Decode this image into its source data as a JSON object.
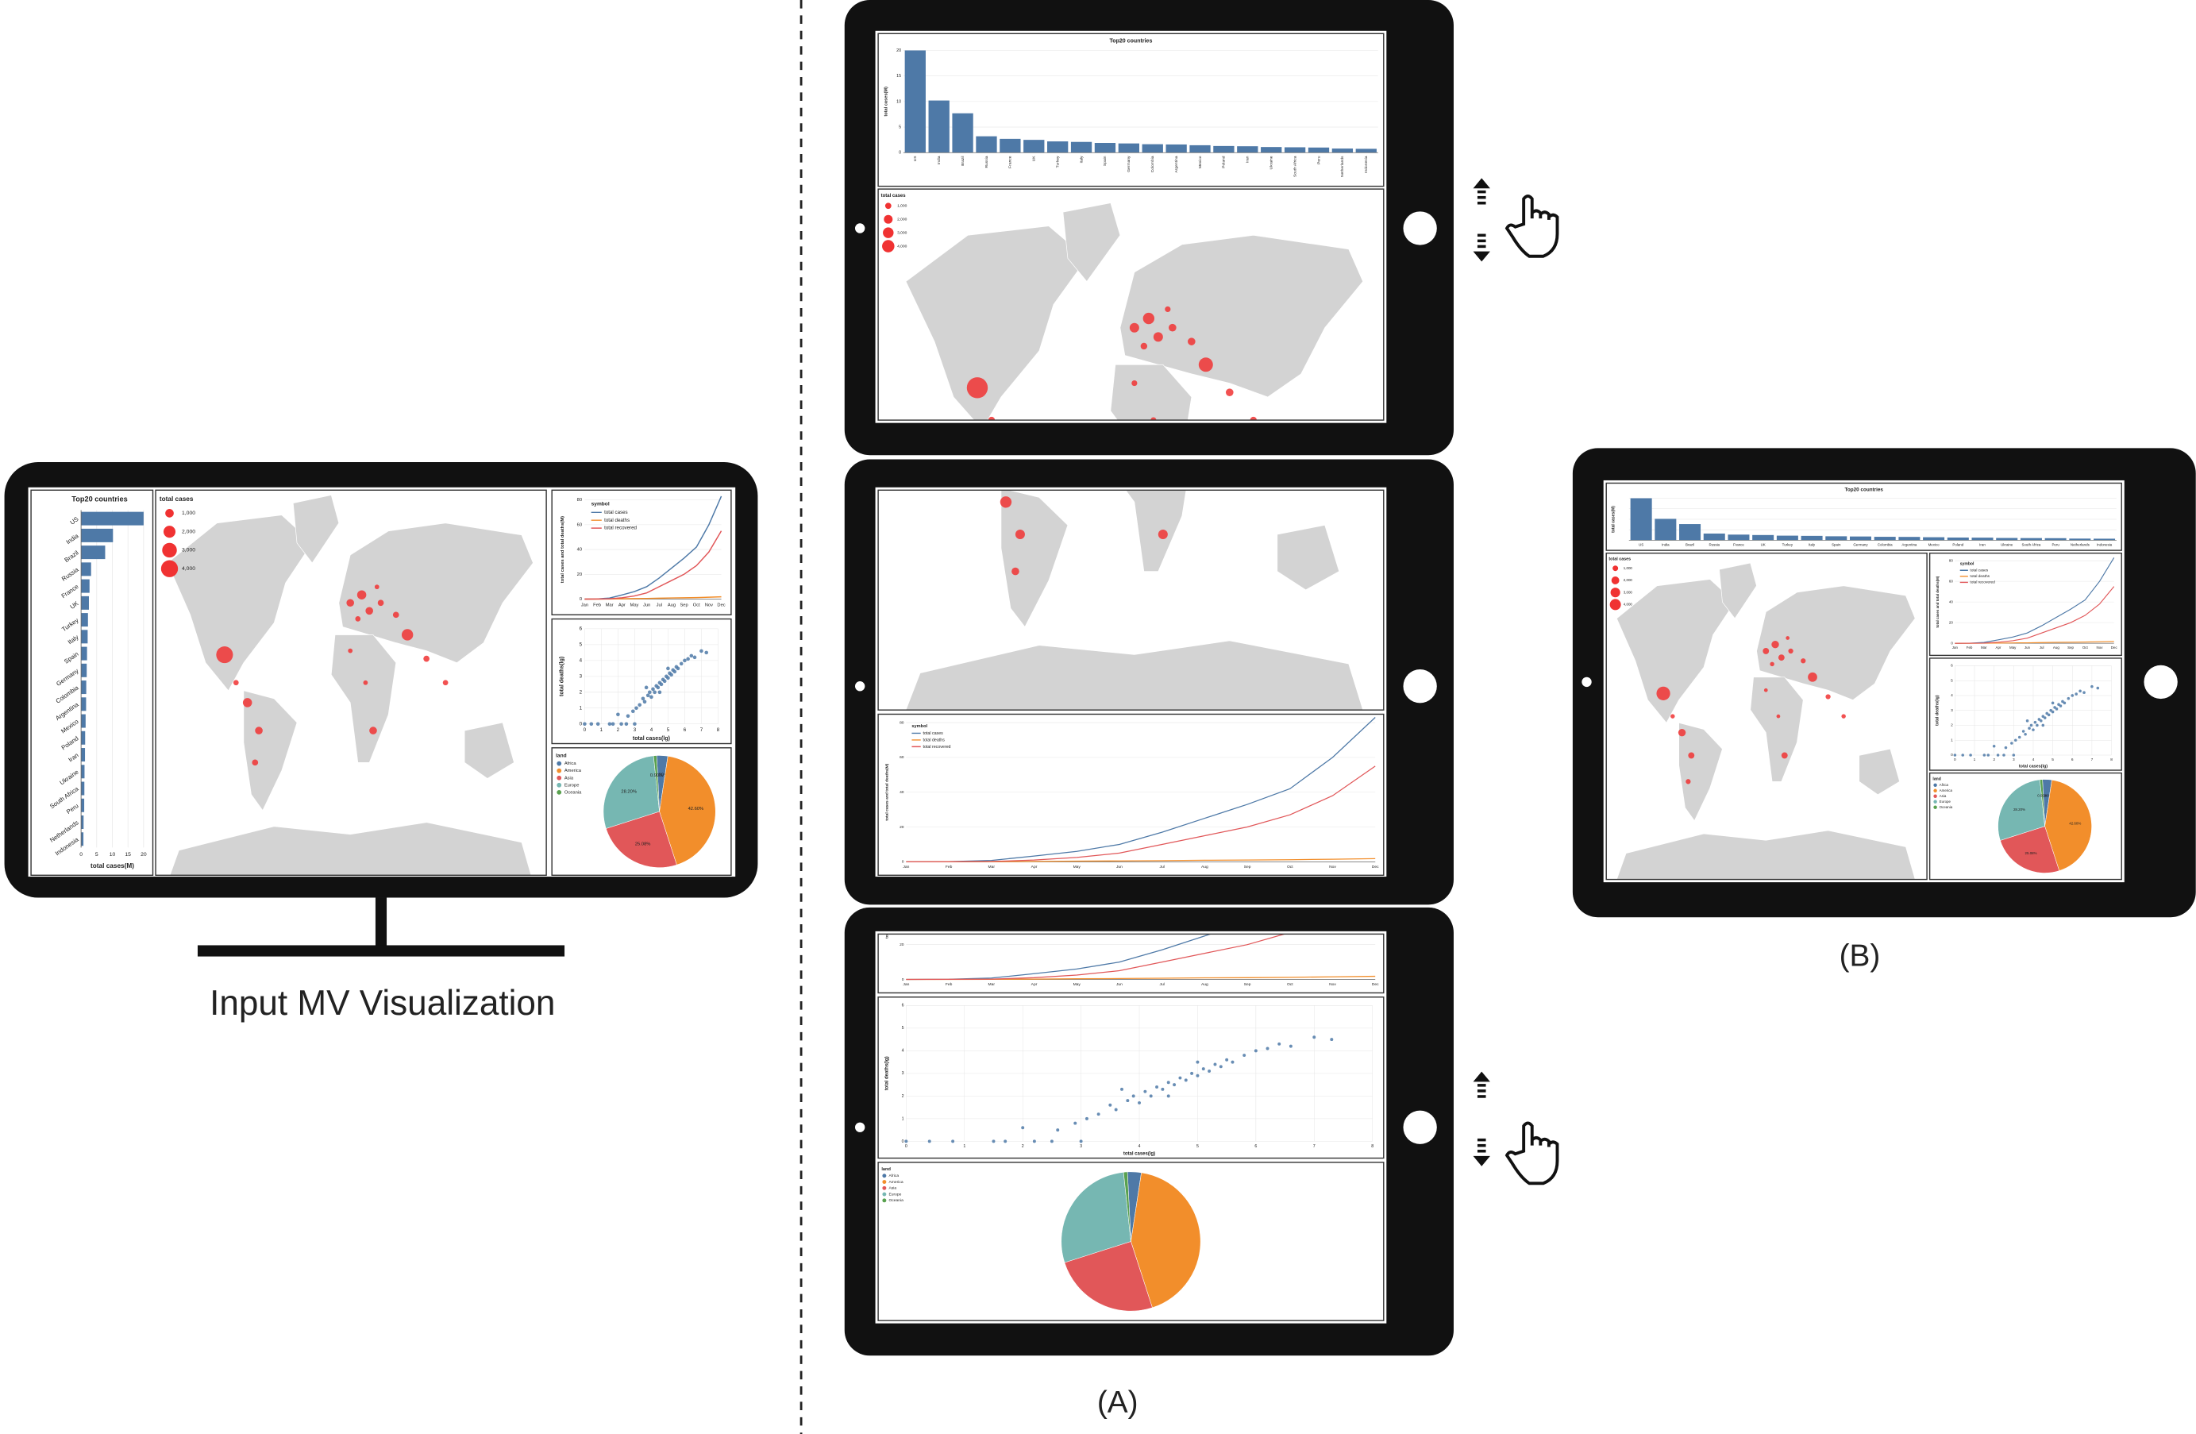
{
  "captions": {
    "desktop": "Input MV Visualization",
    "a": "(A)",
    "b": "(B)"
  },
  "chart_data": [
    {
      "type": "bar",
      "title": "Top20 countries",
      "y_label": "total cases(M)",
      "categories": [
        "US",
        "India",
        "Brazil",
        "Russia",
        "France",
        "UK",
        "Turkey",
        "Italy",
        "Spain",
        "Germany",
        "Colombia",
        "Argentina",
        "Mexico",
        "Poland",
        "Iran",
        "Ukraine",
        "South Africa",
        "Peru",
        "Netherlands",
        "Indonesia"
      ],
      "values": [
        20,
        10.2,
        7.7,
        3.2,
        2.7,
        2.5,
        2.2,
        2.1,
        1.9,
        1.8,
        1.65,
        1.6,
        1.45,
        1.3,
        1.25,
        1.1,
        1.05,
        1,
        0.8,
        0.75
      ],
      "color": "#4e79a7",
      "ylim": [
        0,
        20
      ],
      "yticks": [
        0,
        5,
        10,
        15,
        20
      ],
      "grid": true
    },
    {
      "type": "map",
      "legend_title": "total cases",
      "color": "#f03232",
      "size_legend": [
        {
          "value": 1000,
          "label": "1,000"
        },
        {
          "value": 2000,
          "label": "2,000"
        },
        {
          "value": 3000,
          "label": "3,000"
        },
        {
          "value": 4000,
          "label": "4,000"
        }
      ]
    },
    {
      "type": "line",
      "legend_title": "symbol",
      "y_label": "total cases and total deaths(M)",
      "categories": [
        "Jan",
        "Feb",
        "Mar",
        "Apr",
        "May",
        "Jun",
        "Jul",
        "Aug",
        "Sep",
        "Oct",
        "Nov",
        "Dec"
      ],
      "series": [
        {
          "name": "total cases",
          "color": "#4e79a7",
          "values": [
            0,
            0.1,
            0.8,
            3.3,
            6,
            10,
            17,
            25,
            33,
            42,
            60,
            83
          ]
        },
        {
          "name": "total deaths",
          "color": "#f28e2b",
          "values": [
            0,
            0,
            0.05,
            0.2,
            0.4,
            0.5,
            0.7,
            0.9,
            1,
            1.2,
            1.5,
            1.8
          ]
        },
        {
          "name": "total recovered",
          "color": "#e15759",
          "values": [
            0,
            0.05,
            0.2,
            1,
            2.5,
            5,
            10,
            15,
            20,
            27,
            38,
            55
          ]
        }
      ],
      "ylim": [
        0,
        80
      ],
      "yticks": [
        0,
        20,
        40,
        60,
        80
      ],
      "grid": true
    },
    {
      "type": "scatter",
      "x_label": "total cases(lg)",
      "y_label": "total deaths(lg)",
      "color": "#4e79a7",
      "x": [
        0,
        0.4,
        0.8,
        1.5,
        1.7,
        2.2,
        2.5,
        3,
        2.6,
        2.9,
        3.1,
        3.3,
        3.5,
        3.6,
        3.8,
        3.9,
        4,
        4.1,
        4.2,
        4.3,
        4.4,
        4.5,
        4.6,
        4.7,
        4.8,
        4.9,
        5,
        5.1,
        5.2,
        5.3,
        5.4,
        5.5,
        5.6,
        5.8,
        6,
        6.2,
        6.4,
        6.6,
        7,
        7.3,
        4.5,
        3.7,
        5,
        2
      ],
      "y": [
        0,
        0,
        0,
        0,
        0,
        0,
        0,
        0,
        0.5,
        0.8,
        1,
        1.2,
        1.6,
        1.4,
        1.8,
        2,
        1.7,
        2.2,
        2,
        2.4,
        2.3,
        2.6,
        2.5,
        2.8,
        2.7,
        3,
        2.9,
        3.2,
        3.1,
        3.4,
        3.3,
        3.6,
        3.5,
        3.8,
        4,
        4.1,
        4.3,
        4.2,
        4.6,
        4.5,
        2,
        2.3,
        3.5,
        0.6
      ],
      "xlim": [
        0,
        8
      ],
      "xticks": [
        0,
        1,
        2,
        3,
        4,
        5,
        6,
        7,
        8
      ],
      "ylim": [
        0,
        6
      ],
      "yticks": [
        0,
        1,
        2,
        3,
        4,
        5,
        6
      ],
      "grid": true
    },
    {
      "type": "pie",
      "legend_title": "land",
      "categories": [
        "Africa",
        "America",
        "Asia",
        "Europe",
        "Oceania"
      ],
      "values": [
        3.2,
        42.6,
        25.08,
        28.2,
        0.9
      ],
      "value_labels": [
        "3.20%",
        "42.60%",
        "25.08%",
        "28.20%",
        "0.90%"
      ],
      "colors": [
        "#4e79a7",
        "#f28e2b",
        "#e15759",
        "#76b7b2",
        "#59a14f"
      ]
    }
  ]
}
